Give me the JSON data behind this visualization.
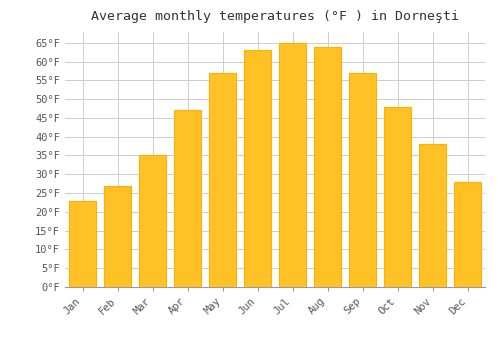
{
  "title": "Average monthly temperatures (°F ) in Dorneşti",
  "months": [
    "Jan",
    "Feb",
    "Mar",
    "Apr",
    "May",
    "Jun",
    "Jul",
    "Aug",
    "Sep",
    "Oct",
    "Nov",
    "Dec"
  ],
  "values": [
    23,
    27,
    35,
    47,
    57,
    63,
    65,
    64,
    57,
    48,
    38,
    28
  ],
  "bar_color": "#FFC125",
  "bar_edge_color": "#FFB000",
  "ylim": [
    0,
    68
  ],
  "yticks": [
    0,
    5,
    10,
    15,
    20,
    25,
    30,
    35,
    40,
    45,
    50,
    55,
    60,
    65
  ],
  "ytick_labels": [
    "0°F",
    "5°F",
    "10°F",
    "15°F",
    "20°F",
    "25°F",
    "30°F",
    "35°F",
    "40°F",
    "45°F",
    "50°F",
    "55°F",
    "60°F",
    "65°F"
  ],
  "title_fontsize": 9.5,
  "tick_fontsize": 7.5,
  "background_color": "#ffffff",
  "grid_color": "#cccccc",
  "font_family": "monospace",
  "bar_width": 0.75
}
